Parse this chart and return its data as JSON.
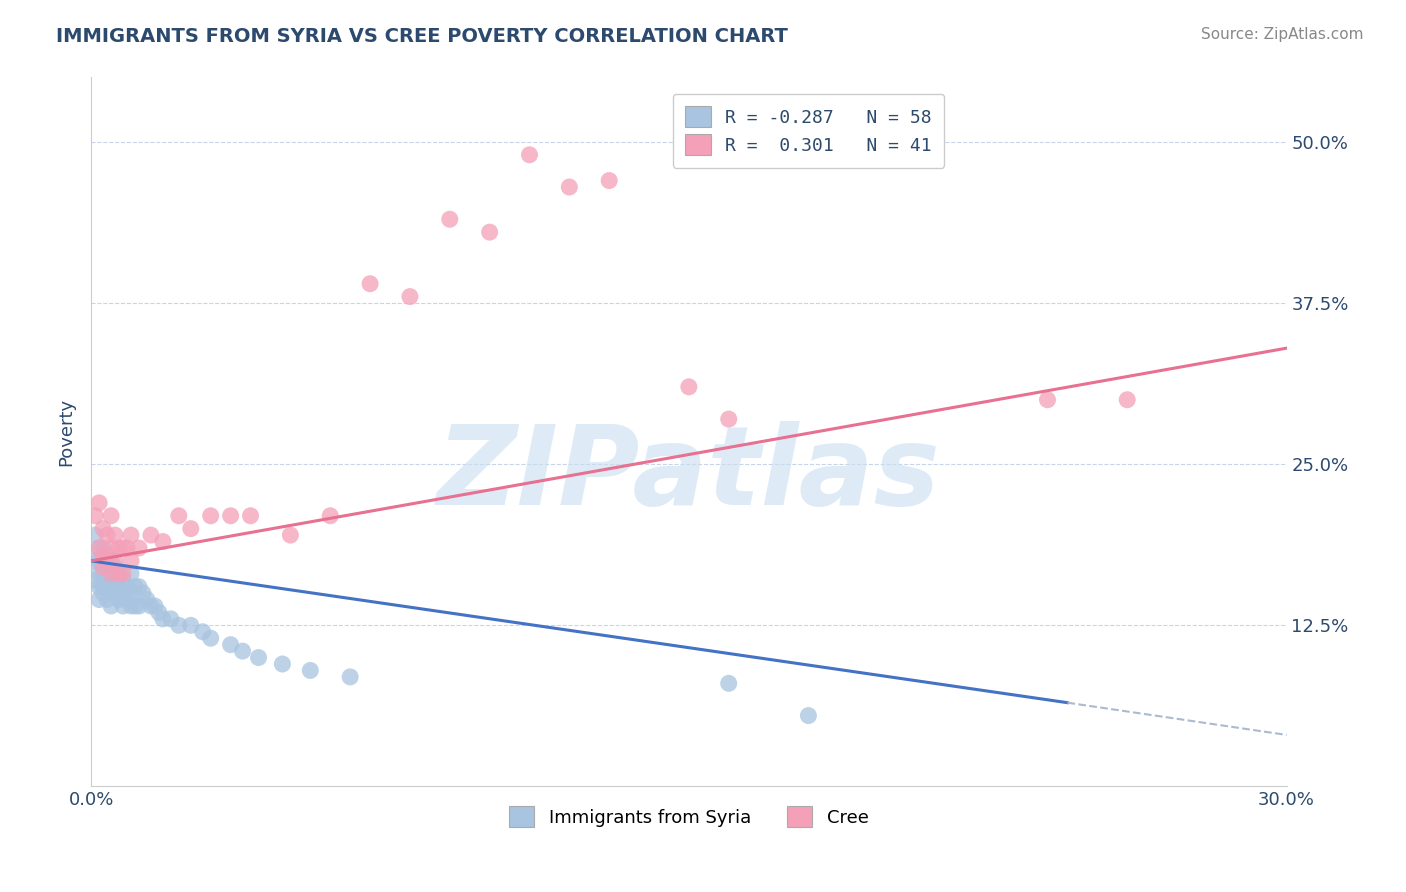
{
  "title": "IMMIGRANTS FROM SYRIA VS CREE POVERTY CORRELATION CHART",
  "source_text": "Source: ZipAtlas.com",
  "ylabel": "Poverty",
  "xlim": [
    0.0,
    0.3
  ],
  "ylim": [
    0.0,
    0.55
  ],
  "x_ticks": [
    0.0,
    0.3
  ],
  "x_tick_labels": [
    "0.0%",
    "30.0%"
  ],
  "y_ticks": [
    0.125,
    0.25,
    0.375,
    0.5
  ],
  "y_tick_labels": [
    "12.5%",
    "25.0%",
    "37.5%",
    "50.0%"
  ],
  "blue_color": "#a8c4e0",
  "pink_color": "#f4a0b8",
  "blue_line_color": "#4472c4",
  "pink_line_color": "#e87090",
  "dashed_line_color": "#aabbd0",
  "watermark": "ZIPatlas",
  "watermark_color": "#c8dff0",
  "legend_label_blue": "Immigrants from Syria",
  "legend_label_pink": "Cree",
  "legend_line1": "R = -0.287   N = 58",
  "legend_line2": "R =  0.301   N = 41",
  "background_color": "#ffffff",
  "grid_color": "#c8d4e8",
  "title_color": "#2c4a6e",
  "source_color": "#888888",
  "axis_color": "#2c4a6e",
  "blue_scatter_x": [
    0.001,
    0.001,
    0.001,
    0.002,
    0.002,
    0.002,
    0.002,
    0.002,
    0.003,
    0.003,
    0.003,
    0.003,
    0.003,
    0.004,
    0.004,
    0.004,
    0.004,
    0.005,
    0.005,
    0.005,
    0.005,
    0.006,
    0.006,
    0.006,
    0.007,
    0.007,
    0.007,
    0.008,
    0.008,
    0.008,
    0.009,
    0.009,
    0.01,
    0.01,
    0.01,
    0.011,
    0.011,
    0.012,
    0.012,
    0.013,
    0.014,
    0.015,
    0.016,
    0.017,
    0.018,
    0.02,
    0.022,
    0.025,
    0.028,
    0.03,
    0.035,
    0.038,
    0.042,
    0.048,
    0.055,
    0.065,
    0.16,
    0.18
  ],
  "blue_scatter_y": [
    0.195,
    0.175,
    0.16,
    0.185,
    0.175,
    0.165,
    0.155,
    0.145,
    0.185,
    0.175,
    0.165,
    0.155,
    0.15,
    0.18,
    0.17,
    0.16,
    0.145,
    0.175,
    0.165,
    0.155,
    0.14,
    0.17,
    0.16,
    0.15,
    0.165,
    0.155,
    0.145,
    0.16,
    0.15,
    0.14,
    0.155,
    0.145,
    0.165,
    0.15,
    0.14,
    0.155,
    0.14,
    0.155,
    0.14,
    0.15,
    0.145,
    0.14,
    0.14,
    0.135,
    0.13,
    0.13,
    0.125,
    0.125,
    0.12,
    0.115,
    0.11,
    0.105,
    0.1,
    0.095,
    0.09,
    0.085,
    0.08,
    0.055
  ],
  "pink_scatter_x": [
    0.001,
    0.002,
    0.002,
    0.003,
    0.003,
    0.003,
    0.004,
    0.004,
    0.005,
    0.005,
    0.005,
    0.006,
    0.006,
    0.007,
    0.007,
    0.008,
    0.008,
    0.009,
    0.01,
    0.01,
    0.012,
    0.015,
    0.018,
    0.022,
    0.025,
    0.03,
    0.035,
    0.04,
    0.05,
    0.06,
    0.07,
    0.08,
    0.09,
    0.1,
    0.11,
    0.12,
    0.13,
    0.15,
    0.16,
    0.24,
    0.26
  ],
  "pink_scatter_y": [
    0.21,
    0.22,
    0.185,
    0.2,
    0.18,
    0.17,
    0.195,
    0.175,
    0.21,
    0.185,
    0.165,
    0.195,
    0.175,
    0.185,
    0.165,
    0.185,
    0.165,
    0.185,
    0.195,
    0.175,
    0.185,
    0.195,
    0.19,
    0.21,
    0.2,
    0.21,
    0.21,
    0.21,
    0.195,
    0.21,
    0.39,
    0.38,
    0.44,
    0.43,
    0.49,
    0.465,
    0.47,
    0.31,
    0.285,
    0.3,
    0.3
  ],
  "blue_line_x0": 0.0,
  "blue_line_x1": 0.245,
  "blue_line_y0": 0.175,
  "blue_line_y1": 0.065,
  "dash_line_x0": 0.245,
  "dash_line_x1": 0.3,
  "dash_line_y0": 0.065,
  "dash_line_y1": 0.04,
  "pink_line_x0": 0.0,
  "pink_line_x1": 0.3,
  "pink_line_y0": 0.175,
  "pink_line_y1": 0.34
}
